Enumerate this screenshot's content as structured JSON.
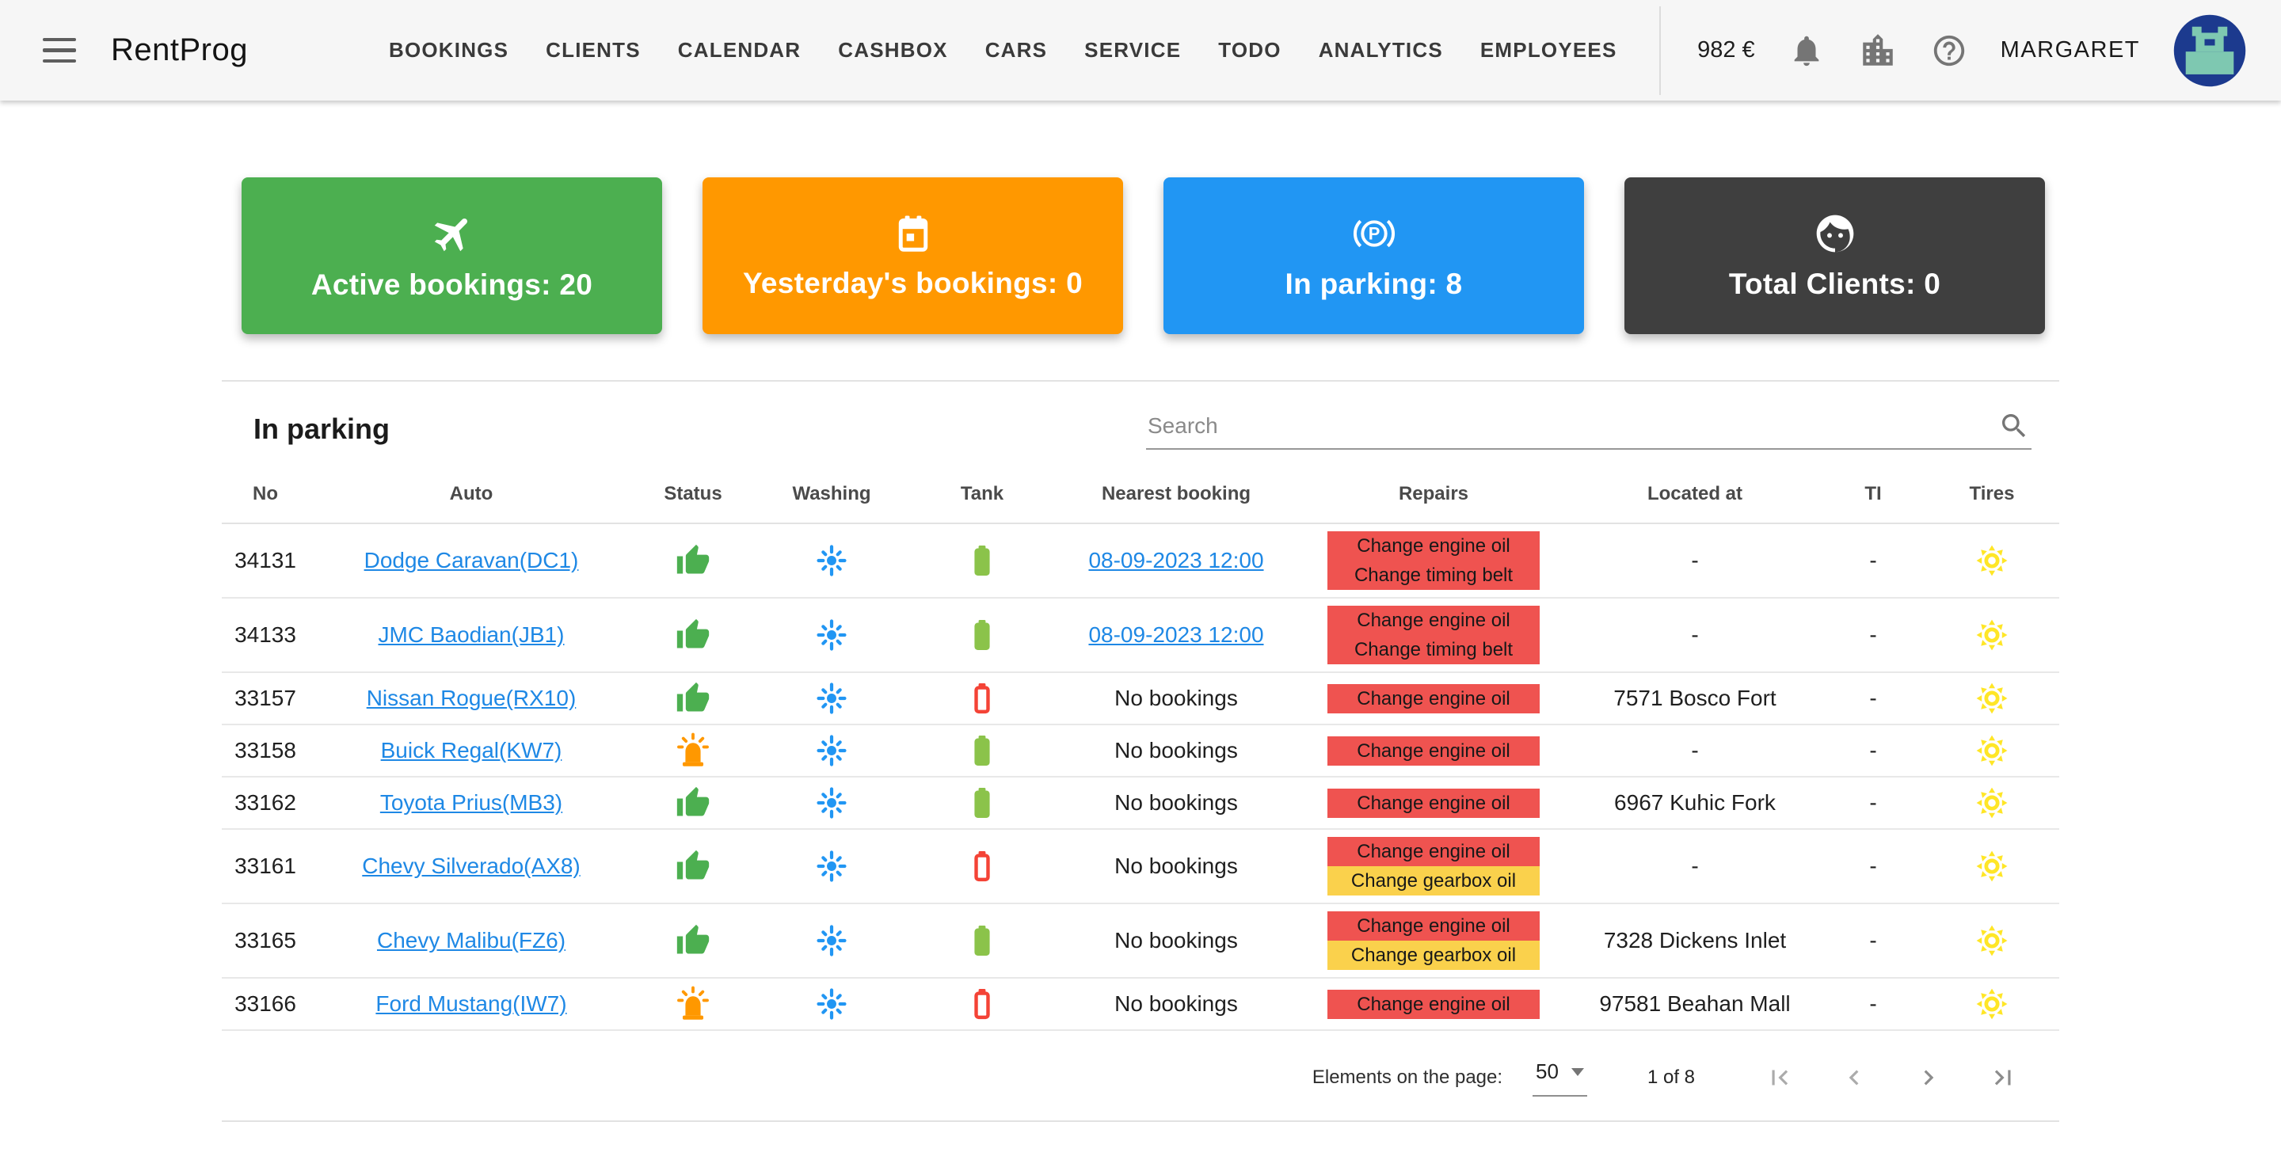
{
  "app_bar": {
    "title": "RentProg",
    "nav_items": [
      {
        "label": "BOOKINGS"
      },
      {
        "label": "CLIENTS"
      },
      {
        "label": "CALENDAR"
      },
      {
        "label": "CASHBOX"
      },
      {
        "label": "CARS"
      },
      {
        "label": "SERVICE"
      },
      {
        "label": "TODO"
      },
      {
        "label": "ANALYTICS"
      },
      {
        "label": "EMPLOYEES"
      }
    ],
    "balance": "982 €",
    "user_name": "MARGARET"
  },
  "cards": [
    {
      "label": "Active bookings: 20",
      "color": "#4CAF50",
      "icon": "airplane-icon"
    },
    {
      "label": "Yesterday's bookings: 0",
      "color": "#FF9800",
      "icon": "calendar-icon"
    },
    {
      "label": "In parking: 8",
      "color": "#2196F3",
      "icon": "parking-icon"
    },
    {
      "label": "Total Clients: 0",
      "color": "#3F3F3F",
      "icon": "face-icon"
    }
  ],
  "parking": {
    "title": "In parking",
    "search_placeholder": "Search",
    "columns": [
      "No",
      "Auto",
      "Status",
      "Washing",
      "Tank",
      "Nearest booking",
      "Repairs",
      "Located at",
      "TI",
      "Tires"
    ],
    "rows": [
      {
        "no": "34131",
        "auto": "Dodge Caravan(DC1)",
        "status": "ok",
        "washing": true,
        "tank": "full",
        "nearest": {
          "label": "08-09-2023 12:00",
          "link": true
        },
        "repairs": [
          {
            "label": "Change engine oil",
            "color": "red"
          },
          {
            "label": "Change timing belt",
            "color": "red"
          }
        ],
        "located_at": "-",
        "ti": "-",
        "tires": "sun"
      },
      {
        "no": "34133",
        "auto": "JMC Baodian(JB1)",
        "status": "ok",
        "washing": true,
        "tank": "full",
        "nearest": {
          "label": "08-09-2023 12:00",
          "link": true
        },
        "repairs": [
          {
            "label": "Change engine oil",
            "color": "red"
          },
          {
            "label": "Change timing belt",
            "color": "red"
          }
        ],
        "located_at": "-",
        "ti": "-",
        "tires": "sun"
      },
      {
        "no": "33157",
        "auto": "Nissan Rogue(RX10)",
        "status": "ok",
        "washing": true,
        "tank": "empty",
        "nearest": {
          "label": "No bookings",
          "link": false
        },
        "repairs": [
          {
            "label": "Change engine oil",
            "color": "red"
          }
        ],
        "located_at": "7571 Bosco Fort",
        "ti": "-",
        "tires": "sun"
      },
      {
        "no": "33158",
        "auto": "Buick Regal(KW7)",
        "status": "alert",
        "washing": true,
        "tank": "full",
        "nearest": {
          "label": "No bookings",
          "link": false
        },
        "repairs": [
          {
            "label": "Change engine oil",
            "color": "red"
          }
        ],
        "located_at": "-",
        "ti": "-",
        "tires": "sun"
      },
      {
        "no": "33162",
        "auto": "Toyota Prius(MB3)",
        "status": "ok",
        "washing": true,
        "tank": "full",
        "nearest": {
          "label": "No bookings",
          "link": false
        },
        "repairs": [
          {
            "label": "Change engine oil",
            "color": "red"
          }
        ],
        "located_at": "6967 Kuhic Fork",
        "ti": "-",
        "tires": "sun"
      },
      {
        "no": "33161",
        "auto": "Chevy Silverado(AX8)",
        "status": "ok",
        "washing": true,
        "tank": "empty",
        "nearest": {
          "label": "No bookings",
          "link": false
        },
        "repairs": [
          {
            "label": "Change engine oil",
            "color": "red"
          },
          {
            "label": "Change gearbox oil",
            "color": "yellow"
          }
        ],
        "located_at": "-",
        "ti": "-",
        "tires": "sun"
      },
      {
        "no": "33165",
        "auto": "Chevy Malibu(FZ6)",
        "status": "ok",
        "washing": true,
        "tank": "full",
        "nearest": {
          "label": "No bookings",
          "link": false
        },
        "repairs": [
          {
            "label": "Change engine oil",
            "color": "red"
          },
          {
            "label": "Change gearbox oil",
            "color": "yellow"
          }
        ],
        "located_at": "7328 Dickens Inlet",
        "ti": "-",
        "tires": "sun"
      },
      {
        "no": "33166",
        "auto": "Ford Mustang(IW7)",
        "status": "alert",
        "washing": true,
        "tank": "empty",
        "nearest": {
          "label": "No bookings",
          "link": false
        },
        "repairs": [
          {
            "label": "Change engine oil",
            "color": "red"
          }
        ],
        "located_at": "97581 Beahan Mall",
        "ti": "-",
        "tires": "sun"
      }
    ],
    "footer": {
      "elements_label": "Elements on the page:",
      "page_size": "50",
      "page_info": "1 of 8"
    }
  },
  "colors": {
    "link_blue": "#1E88E5",
    "chip_red": "#EF5350",
    "chip_yellow": "#FAD14C",
    "status_ok_green": "#4CAF50",
    "status_alert_orange": "#FF9800",
    "washing_blue": "#2196F3",
    "tank_full_green": "#8BC34A",
    "tank_empty_red": "#F44336",
    "tires_yellow": "#FFE627",
    "appbar_icon_gray": "#757575"
  }
}
